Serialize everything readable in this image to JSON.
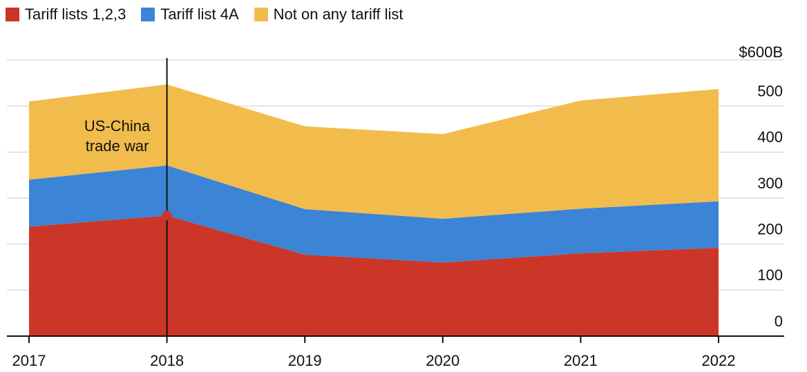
{
  "chart_data": {
    "type": "area",
    "stacked": true,
    "x": [
      "2017",
      "2018",
      "2019",
      "2020",
      "2021",
      "2022"
    ],
    "series": [
      {
        "name": "Tariff lists 1,2,3",
        "color": "#cc3628",
        "values": [
          238,
          262,
          177,
          160,
          180,
          192
        ]
      },
      {
        "name": "Tariff list 4A",
        "color": "#3c84d6",
        "values": [
          102,
          109,
          99,
          95,
          97,
          101
        ]
      },
      {
        "name": "Not on any tariff list",
        "color": "#f2bc4d",
        "values": [
          170,
          176,
          180,
          184,
          235,
          244
        ]
      }
    ],
    "y_ticks": [
      "0",
      "100",
      "200",
      "300",
      "400",
      "500",
      "$600B"
    ],
    "ylim": [
      0,
      600
    ],
    "grid": true,
    "legend_position": "top-left",
    "annotation": {
      "text_lines": [
        "US-China",
        "trade war"
      ],
      "x": "2018",
      "marker_value": 262
    }
  }
}
